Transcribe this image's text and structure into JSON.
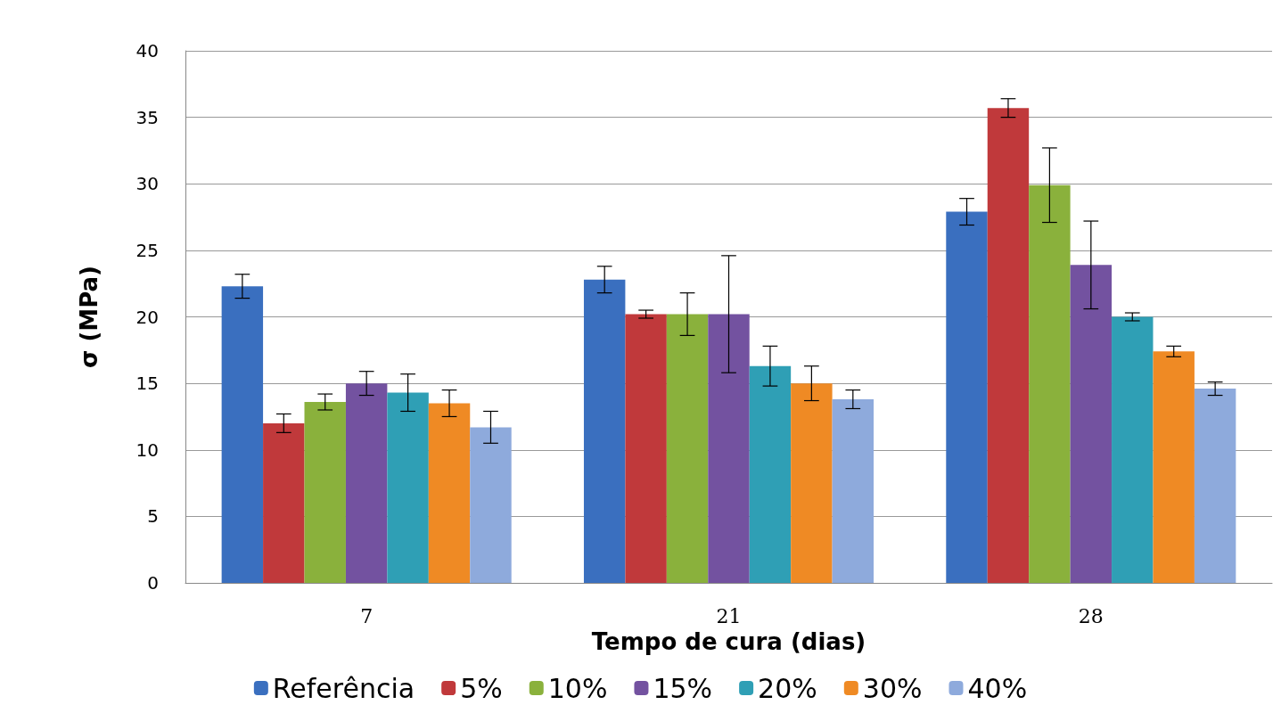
{
  "chart_data": {
    "type": "bar",
    "xlabel": "Tempo de cura (dias)",
    "ylabel": "σ (MPa)",
    "categories": [
      "7",
      "21",
      "28"
    ],
    "ylim": [
      0,
      40
    ],
    "yticks": [
      0,
      5,
      10,
      15,
      20,
      25,
      30,
      35,
      40
    ],
    "grid": "y",
    "legend": "bottom",
    "series": [
      {
        "name": "Referência",
        "color": "#3a6fbf",
        "values": [
          22.3,
          22.8,
          27.9
        ],
        "errors": [
          0.9,
          1,
          1
        ]
      },
      {
        "name": "5%",
        "color": "#c0393b",
        "values": [
          12,
          20.2,
          35.7
        ],
        "errors": [
          0.7,
          0.3,
          0.7
        ]
      },
      {
        "name": "10%",
        "color": "#8ab13c",
        "values": [
          13.6,
          20.2,
          29.9
        ],
        "errors": [
          0.6,
          1.6,
          2.8
        ]
      },
      {
        "name": "15%",
        "color": "#7352a0",
        "values": [
          15,
          20.2,
          23.9
        ],
        "errors": [
          0.9,
          4.4,
          3.3
        ]
      },
      {
        "name": "20%",
        "color": "#2f9fb5",
        "values": [
          14.3,
          16.3,
          20
        ],
        "errors": [
          1.4,
          1.5,
          0.3
        ]
      },
      {
        "name": "30%",
        "color": "#ef8a24",
        "values": [
          13.5,
          15,
          17.4
        ],
        "errors": [
          1,
          1.3,
          0.4
        ]
      },
      {
        "name": "40%",
        "color": "#8eaadc",
        "values": [
          11.7,
          13.8,
          14.6
        ],
        "errors": [
          1.2,
          0.7,
          0.5
        ]
      }
    ]
  }
}
